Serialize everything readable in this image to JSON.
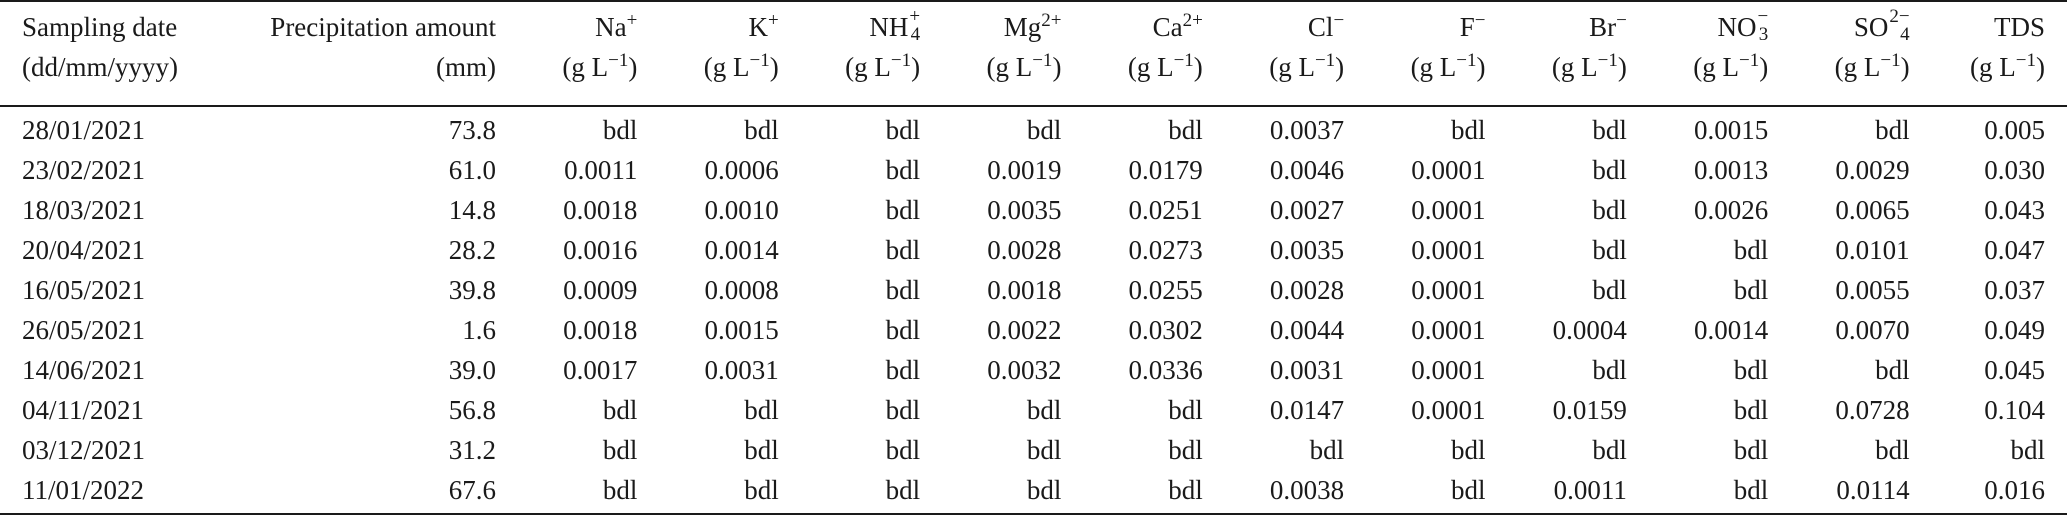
{
  "table": {
    "header_row1": [
      {
        "base": "Sampling date",
        "sup": "",
        "sub": ""
      },
      {
        "base": "Precipitation amount",
        "sup": "",
        "sub": ""
      },
      {
        "base": "Na",
        "sup": "+",
        "sub": ""
      },
      {
        "base": "K",
        "sup": "+",
        "sub": ""
      },
      {
        "base": "NH",
        "sup": "+",
        "sub": "4"
      },
      {
        "base": "Mg",
        "sup": "2+",
        "sub": ""
      },
      {
        "base": "Ca",
        "sup": "2+",
        "sub": ""
      },
      {
        "base": "Cl",
        "sup": "−",
        "sub": ""
      },
      {
        "base": "F",
        "sup": "−",
        "sub": ""
      },
      {
        "base": "Br",
        "sup": "−",
        "sub": ""
      },
      {
        "base": "NO",
        "sup": "−",
        "sub": "3"
      },
      {
        "base": "SO",
        "sup": "2−",
        "sub": "4"
      },
      {
        "base": "TDS",
        "sup": "",
        "sub": ""
      }
    ],
    "header_row2": [
      "(dd/mm/yyyy)",
      "(mm)",
      "unit",
      "unit",
      "unit",
      "unit",
      "unit",
      "unit",
      "unit",
      "unit",
      "unit",
      "unit",
      "unit"
    ],
    "unit_prefix": "(g L",
    "unit_sup": "−1",
    "unit_suffix": ")",
    "rows": [
      [
        "28/01/2021",
        "73.8",
        "bdl",
        "bdl",
        "bdl",
        "bdl",
        "bdl",
        "0.0037",
        "bdl",
        "bdl",
        "0.0015",
        "bdl",
        "0.005"
      ],
      [
        "23/02/2021",
        "61.0",
        "0.0011",
        "0.0006",
        "bdl",
        "0.0019",
        "0.0179",
        "0.0046",
        "0.0001",
        "bdl",
        "0.0013",
        "0.0029",
        "0.030"
      ],
      [
        "18/03/2021",
        "14.8",
        "0.0018",
        "0.0010",
        "bdl",
        "0.0035",
        "0.0251",
        "0.0027",
        "0.0001",
        "bdl",
        "0.0026",
        "0.0065",
        "0.043"
      ],
      [
        "20/04/2021",
        "28.2",
        "0.0016",
        "0.0014",
        "bdl",
        "0.0028",
        "0.0273",
        "0.0035",
        "0.0001",
        "bdl",
        "bdl",
        "0.0101",
        "0.047"
      ],
      [
        "16/05/2021",
        "39.8",
        "0.0009",
        "0.0008",
        "bdl",
        "0.0018",
        "0.0255",
        "0.0028",
        "0.0001",
        "bdl",
        "bdl",
        "0.0055",
        "0.037"
      ],
      [
        "26/05/2021",
        "1.6",
        "0.0018",
        "0.0015",
        "bdl",
        "0.0022",
        "0.0302",
        "0.0044",
        "0.0001",
        "0.0004",
        "0.0014",
        "0.0070",
        "0.049"
      ],
      [
        "14/06/2021",
        "39.0",
        "0.0017",
        "0.0031",
        "bdl",
        "0.0032",
        "0.0336",
        "0.0031",
        "0.0001",
        "bdl",
        "bdl",
        "bdl",
        "0.045"
      ],
      [
        "04/11/2021",
        "56.8",
        "bdl",
        "bdl",
        "bdl",
        "bdl",
        "bdl",
        "0.0147",
        "0.0001",
        "0.0159",
        "bdl",
        "0.0728",
        "0.104"
      ],
      [
        "03/12/2021",
        "31.2",
        "bdl",
        "bdl",
        "bdl",
        "bdl",
        "bdl",
        "bdl",
        "bdl",
        "bdl",
        "bdl",
        "bdl",
        "bdl"
      ],
      [
        "11/01/2022",
        "67.6",
        "bdl",
        "bdl",
        "bdl",
        "bdl",
        "bdl",
        "0.0038",
        "bdl",
        "0.0011",
        "bdl",
        "0.0114",
        "0.016"
      ]
    ]
  }
}
